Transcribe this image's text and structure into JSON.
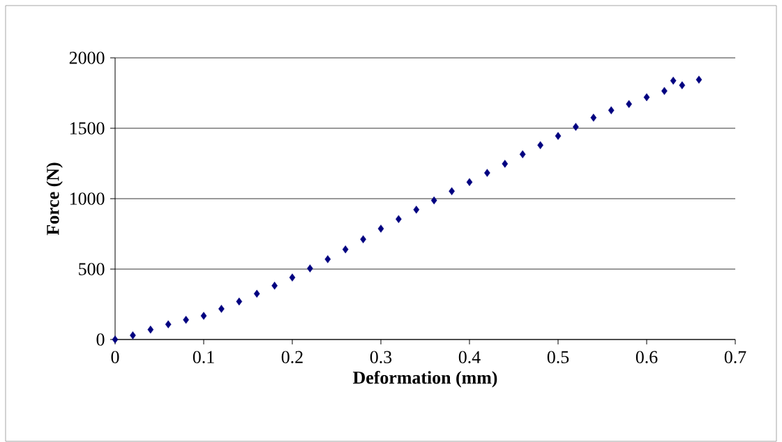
{
  "chart_data": {
    "type": "scatter",
    "xlabel": "Deformation (mm)",
    "ylabel": "Force (N)",
    "x": [
      0,
      0.02,
      0.04,
      0.06,
      0.08,
      0.1,
      0.12,
      0.14,
      0.16,
      0.18,
      0.2,
      0.22,
      0.24,
      0.26,
      0.28,
      0.3,
      0.32,
      0.34,
      0.36,
      0.38,
      0.4,
      0.42,
      0.44,
      0.46,
      0.48,
      0.5,
      0.52,
      0.54,
      0.56,
      0.58,
      0.6,
      0.62,
      0.63,
      0.64,
      0.659
    ],
    "series": [
      {
        "color": "#000080",
        "values": [
          0,
          30,
          70,
          108,
          140,
          168,
          218,
          270,
          325,
          382,
          440,
          505,
          570,
          640,
          712,
          787,
          855,
          922,
          988,
          1053,
          1118,
          1183,
          1248,
          1315,
          1380,
          1445,
          1510,
          1575,
          1628,
          1672,
          1720,
          1765,
          1838,
          1805,
          1845
        ]
      }
    ],
    "xlim": [
      0,
      0.7
    ],
    "ylim": [
      0,
      2000
    ],
    "xticks": [
      0,
      0.1,
      0.2,
      0.3,
      0.4,
      0.5,
      0.6,
      0.7
    ],
    "yticks": [
      0,
      500,
      1000,
      1500,
      2000
    ],
    "grid": "y",
    "marker": "diamond"
  }
}
